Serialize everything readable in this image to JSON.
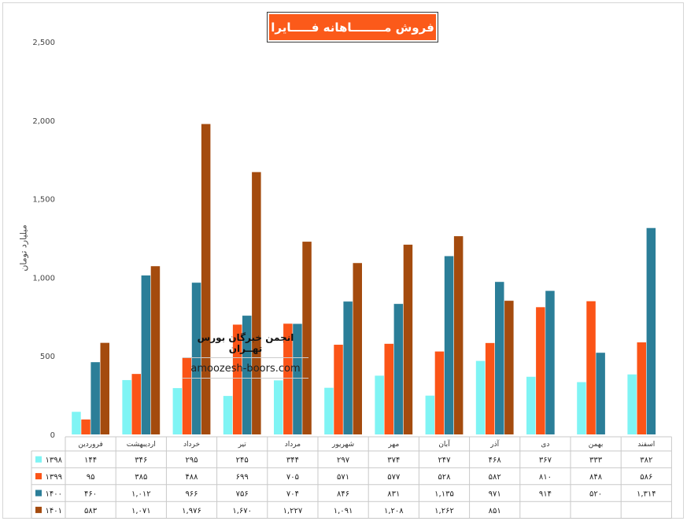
{
  "chart_data": {
    "type": "bar",
    "title": "فروش مــــــــاهانه فـــــايرا",
    "ylabel": "میلیارد تومان",
    "ylim": [
      0,
      2500
    ],
    "yticks": [
      "2,500",
      "2,000",
      "1,500",
      "1,000",
      "500",
      "0"
    ],
    "ytick_values": [
      2500,
      2000,
      1500,
      1000,
      500,
      0
    ],
    "categories": [
      "فروردین",
      "اردیبهشت",
      "خرداد",
      "تیر",
      "مرداد",
      "شهریور",
      "مهر",
      "آبان",
      "آذر",
      "دی",
      "بهمن",
      "اسفند"
    ],
    "series": [
      {
        "name": "۱۳۹۸",
        "color": "#7ff4f4",
        "values": [
          144,
          346,
          295,
          245,
          344,
          297,
          374,
          247,
          468,
          367,
          333,
          382
        ],
        "labels": [
          "۱۴۴",
          "۳۴۶",
          "۲۹۵",
          "۲۴۵",
          "۳۴۴",
          "۲۹۷",
          "۳۷۴",
          "۲۴۷",
          "۴۶۸",
          "۳۶۷",
          "۳۳۳",
          "۳۸۲"
        ]
      },
      {
        "name": "۱۳۹۹",
        "color": "#fb5417",
        "values": [
          95,
          385,
          488,
          699,
          705,
          571,
          577,
          528,
          582,
          810,
          848,
          586
        ],
        "labels": [
          "۹۵",
          "۳۸۵",
          "۴۸۸",
          "۶۹۹",
          "۷۰۵",
          "۵۷۱",
          "۵۷۷",
          "۵۲۸",
          "۵۸۲",
          "۸۱۰",
          "۸۴۸",
          "۵۸۶"
        ]
      },
      {
        "name": "۱۴۰۰",
        "color": "#2b7e98",
        "values": [
          460,
          1012,
          966,
          756,
          704,
          846,
          831,
          1135,
          971,
          914,
          520,
          1314
        ],
        "labels": [
          "۴۶۰",
          "۱,۰۱۲",
          "۹۶۶",
          "۷۵۶",
          "۷۰۴",
          "۸۴۶",
          "۸۳۱",
          "۱,۱۳۵",
          "۹۷۱",
          "۹۱۴",
          "۵۲۰",
          "۱,۳۱۴"
        ]
      },
      {
        "name": "۱۴۰۱",
        "color": "#a44b0e",
        "values": [
          583,
          1071,
          1976,
          1670,
          1227,
          1091,
          1208,
          1262,
          851,
          null,
          null,
          null
        ],
        "labels": [
          "۵۸۳",
          "۱,۰۷۱",
          "۱,۹۷۶",
          "۱,۶۷۰",
          "۱,۲۲۷",
          "۱,۰۹۱",
          "۱,۲۰۸",
          "۱,۲۶۲",
          "۸۵۱",
          "",
          "",
          ""
        ]
      }
    ],
    "grid": false,
    "legend": "data-table-bottom"
  },
  "watermark": {
    "title": "انجمن خبرگان بورس تهــران",
    "url": "amoozesh-boors.com"
  }
}
